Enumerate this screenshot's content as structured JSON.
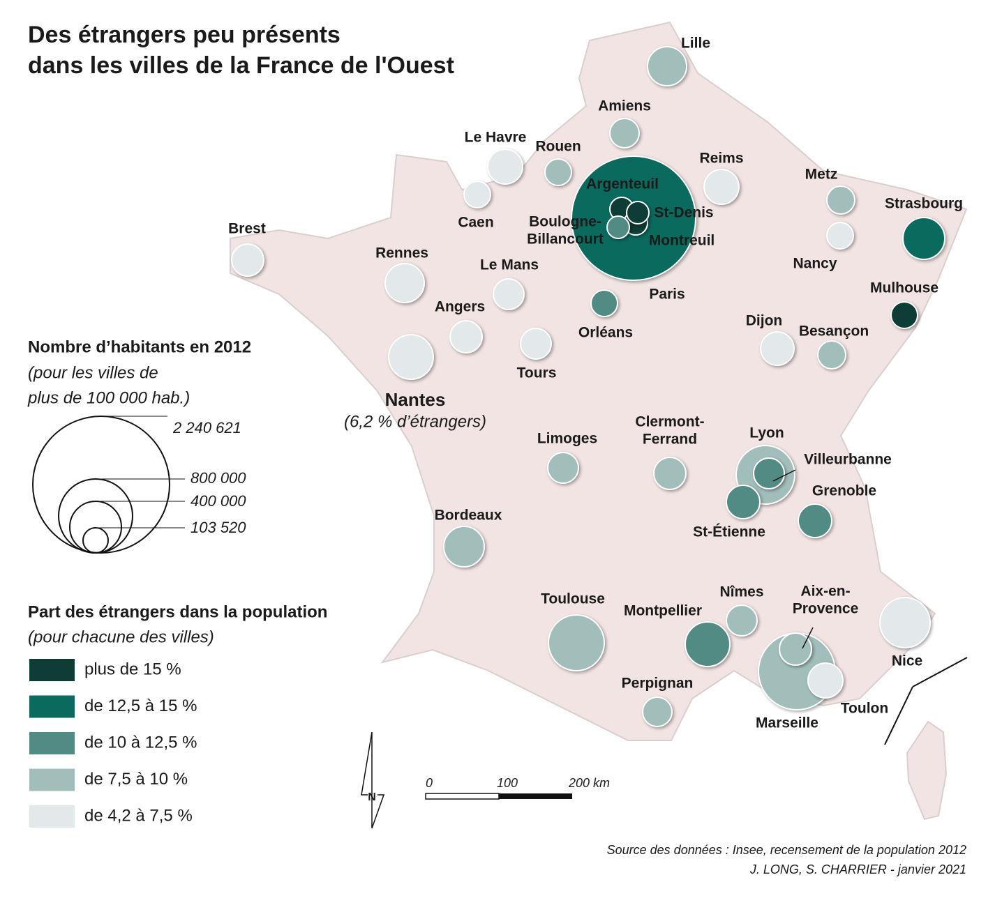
{
  "title_lines": [
    "Des étrangers peu présents",
    "dans les villes de la France de l'Ouest"
  ],
  "size_legend": {
    "title": "Nombre d’habitants en 2012",
    "subtitle_lines": [
      "(pour les villes de",
      "plus de 100 000 hab.)"
    ],
    "labels": [
      "2 240 621",
      "800 000",
      "400 000",
      "103 520"
    ]
  },
  "color_legend": {
    "title": "Part des étrangers dans la population",
    "subtitle": "(pour chacune des villes)",
    "classes": [
      {
        "label": "plus de 15 %",
        "color": "#0e3d35"
      },
      {
        "label": "de 12,5 à 15 %",
        "color": "#0a6a5e"
      },
      {
        "label": "de 10 à 12,5 %",
        "color": "#528a84"
      },
      {
        "label": "de 7,5 à 10 %",
        "color": "#a1bebb"
      },
      {
        "label": "de 4,2 à 7,5 %",
        "color": "#e3e9eb"
      }
    ]
  },
  "cities": [
    {
      "label_lines": [
        "Lille"
      ]
    },
    {
      "label_lines": [
        "Amiens"
      ]
    },
    {
      "label_lines": [
        "Le Havre"
      ]
    },
    {
      "label_lines": [
        "Rouen"
      ]
    },
    {
      "label_lines": [
        "Caen"
      ]
    },
    {
      "label_lines": [
        "Reims"
      ]
    },
    {
      "label_lines": [
        "Metz"
      ]
    },
    {
      "label_lines": [
        "Nancy"
      ]
    },
    {
      "label_lines": [
        "Strasbourg"
      ]
    },
    {
      "label_lines": [
        "Paris"
      ]
    },
    {
      "label_lines": [
        "Argenteuil"
      ]
    },
    {
      "label_lines": [
        "St-Denis"
      ]
    },
    {
      "label_lines": [
        "Boulogne-",
        "Billancourt"
      ]
    },
    {
      "label_lines": [
        "Montreuil"
      ]
    },
    {
      "label_lines": [
        "Brest"
      ]
    },
    {
      "label_lines": [
        "Rennes"
      ]
    },
    {
      "label_lines": [
        "Le Mans"
      ]
    },
    {
      "label_lines": [
        "Angers"
      ]
    },
    {
      "label_lines": [
        "Tours"
      ]
    },
    {
      "label_lines": [
        "Orléans"
      ]
    },
    {
      "label_lines": [
        "Nantes"
      ]
    },
    {
      "label_lines": [
        "Dijon"
      ]
    },
    {
      "label_lines": [
        "Besançon"
      ]
    },
    {
      "label_lines": [
        "Mulhouse"
      ]
    },
    {
      "label_lines": [
        "Limoges"
      ]
    },
    {
      "label_lines": [
        "Clermont-",
        "Ferrand"
      ]
    },
    {
      "label_lines": [
        "Lyon"
      ]
    },
    {
      "label_lines": [
        "Villeurbanne"
      ]
    },
    {
      "label_lines": [
        "St-Étienne"
      ]
    },
    {
      "label_lines": [
        "Grenoble"
      ]
    },
    {
      "label_lines": [
        "Bordeaux"
      ]
    },
    {
      "label_lines": [
        "Toulouse"
      ]
    },
    {
      "label_lines": [
        "Montpellier"
      ]
    },
    {
      "label_lines": [
        "Nîmes"
      ]
    },
    {
      "label_lines": [
        "Aix-en-",
        "Provence"
      ]
    },
    {
      "label_lines": [
        "Marseille"
      ]
    },
    {
      "label_lines": [
        "Toulon"
      ]
    },
    {
      "label_lines": [
        "Nice"
      ]
    },
    {
      "label_lines": [
        "Perpignan"
      ]
    }
  ],
  "nantes_note": "(6,2 % d’étrangers)",
  "scale_labels": [
    "0",
    "100",
    "200 km"
  ],
  "north": "N",
  "source_lines": [
    "Source des données : Insee, recensement de la population 2012",
    "J. LONG, S. CHARRIER - janvier 2021"
  ]
}
